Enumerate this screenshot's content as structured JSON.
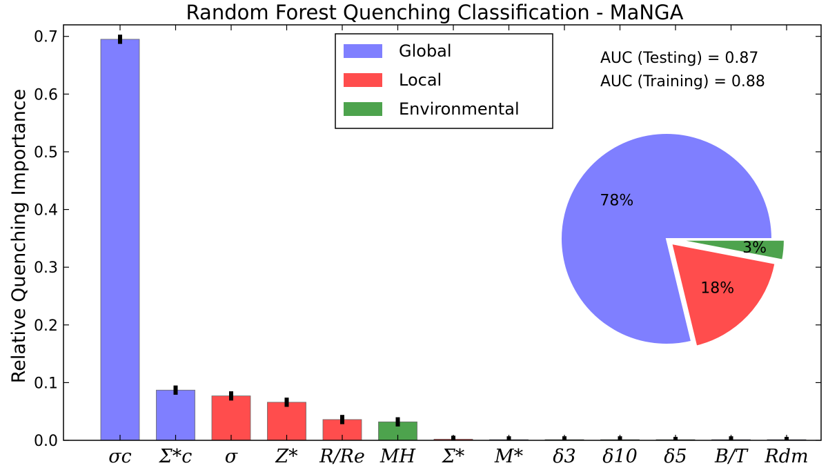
{
  "chart_data": {
    "type": "bar",
    "title": "Random Forest Quenching Classification - MaNGA",
    "xlabel": "",
    "ylabel": "Relative Quenching Importance",
    "ylim": [
      0,
      0.72
    ],
    "yticks": [
      "0.0",
      "0.1",
      "0.2",
      "0.3",
      "0.4",
      "0.5",
      "0.6",
      "0.7"
    ],
    "grid": false,
    "legend_position": "top-center",
    "categories": [
      "σc",
      "Σ*c",
      "σ",
      "Z*",
      "R/Re",
      "MH",
      "Σ*",
      "M*",
      "δ3",
      "δ10",
      "δ5",
      "B/T",
      "Rdm"
    ],
    "values": [
      0.695,
      0.087,
      0.077,
      0.066,
      0.036,
      0.032,
      0.002,
      0.001,
      0.001,
      0.001,
      0.0,
      0.001,
      0.0
    ],
    "errors": [
      0.008,
      0.008,
      0.008,
      0.008,
      0.008,
      0.008,
      0.006,
      0.006,
      0.006,
      0.006,
      0.006,
      0.006,
      0.006
    ],
    "bar_groups": [
      "Global",
      "Global",
      "Local",
      "Local",
      "Local",
      "Environmental",
      "Local",
      "Global",
      "Environmental",
      "Environmental",
      "Environmental",
      "Global",
      "Global"
    ],
    "legend": [
      {
        "label": "Global",
        "color": "#7f7fff"
      },
      {
        "label": "Local",
        "color": "#ff4d4d"
      },
      {
        "label": "Environmental",
        "color": "#4da34d"
      }
    ],
    "annotations": [
      "AUC (Testing) = 0.87",
      "AUC (Training) = 0.88"
    ],
    "pie": {
      "type": "pie",
      "slices": [
        {
          "label": "Global",
          "value": 78,
          "text": "78%",
          "color": "#7f7fff"
        },
        {
          "label": "Local",
          "value": 18,
          "text": "18%",
          "color": "#ff4d4d"
        },
        {
          "label": "Environmental",
          "value": 3,
          "text": "3%",
          "color": "#4da34d"
        }
      ]
    }
  }
}
